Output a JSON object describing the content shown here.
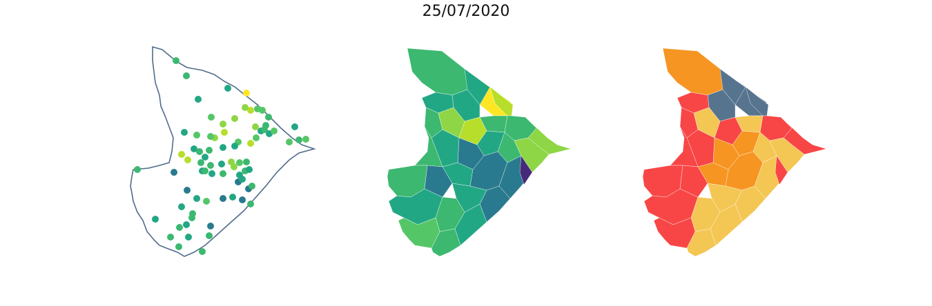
{
  "figure": {
    "title": "25/07/2020"
  },
  "colors": {
    "outline": "#4f6b8a",
    "viridis": [
      "#462a7a",
      "#297a8e",
      "#22a784",
      "#3cb870",
      "#55c667",
      "#8ed645",
      "#b6de2b",
      "#fde725"
    ],
    "risk_classes": [
      "#f4c653",
      "#f69522",
      "#f84646",
      "#57748f"
    ]
  },
  "panels": [
    {
      "name": "points-map",
      "description_type": "scatter of municipalities over state outline"
    },
    {
      "name": "values-map",
      "description_type": "choropleth viridis"
    },
    {
      "name": "classes-map",
      "description_type": "choropleth categorical"
    }
  ]
}
